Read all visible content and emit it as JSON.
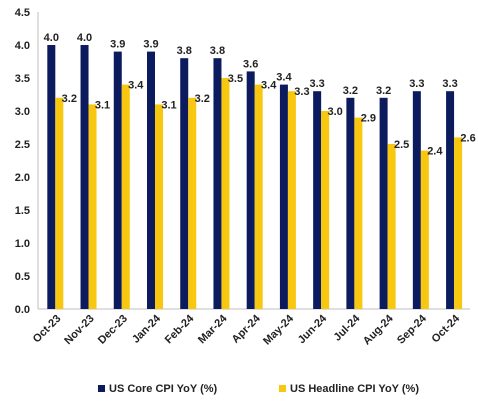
{
  "chart_data": {
    "type": "bar",
    "categories": [
      "Oct-23",
      "Nov-23",
      "Dec-23",
      "Jan-24",
      "Feb-24",
      "Mar-24",
      "Apr-24",
      "May-24",
      "Jun-24",
      "Jul-24",
      "Aug-24",
      "Sep-24",
      "Oct-24"
    ],
    "series": [
      {
        "name": "US Core CPI YoY (%)",
        "color": "#0B1B5E",
        "values": [
          4.0,
          4.0,
          3.9,
          3.9,
          3.8,
          3.8,
          3.6,
          3.4,
          3.3,
          3.2,
          3.2,
          3.3,
          3.3
        ]
      },
      {
        "name": "US Headline CPI YoY (%)",
        "color": "#F7C80F",
        "values": [
          3.2,
          3.1,
          3.4,
          3.1,
          3.2,
          3.5,
          3.4,
          3.3,
          3.0,
          2.9,
          2.5,
          2.4,
          2.6
        ]
      }
    ],
    "ylim": [
      0,
      4.5
    ],
    "yticks": [
      "0.0",
      "0.5",
      "1.0",
      "1.5",
      "2.0",
      "2.5",
      "3.0",
      "3.5",
      "4.0",
      "4.5"
    ],
    "grid": false,
    "legend_position": "bottom"
  }
}
